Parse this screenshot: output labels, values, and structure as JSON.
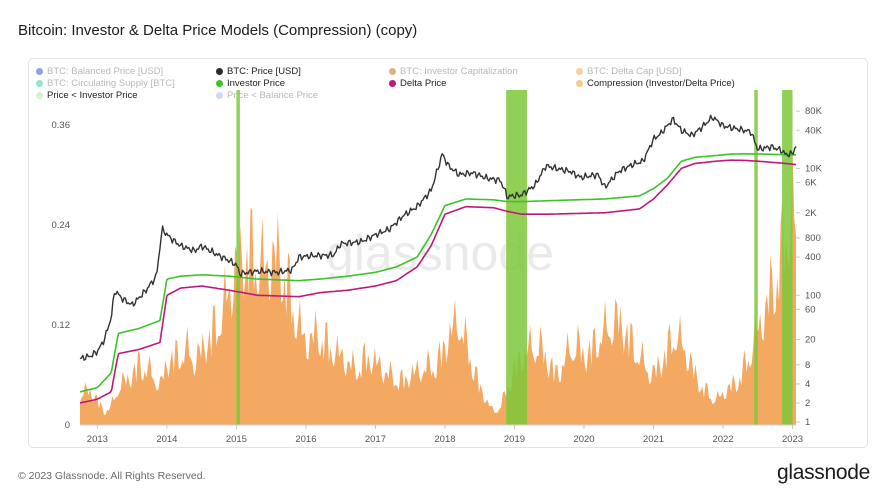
{
  "page": {
    "title": "Bitcoin: Investor & Delta Price Models (Compression) (copy)",
    "footer": "© 2023 Glassnode. All Rights Reserved.",
    "brand": "glassnode",
    "watermark": "glassnode"
  },
  "legend": [
    {
      "label": "BTC: Balanced Price [USD]",
      "color": "#3a4fd8",
      "active": false
    },
    {
      "label": "BTC: Price [USD]",
      "color": "#2b2b2b",
      "active": true
    },
    {
      "label": "BTC: Investor Capitalization",
      "color": "#b7791f",
      "active": false
    },
    {
      "label": "BTC: Delta Cap [USD]",
      "color": "#f0a860",
      "active": false
    },
    {
      "label": "BTC: Circulating Supply [BTC]",
      "color": "#34d399",
      "active": false
    },
    {
      "label": "Investor Price",
      "color": "#3cc32a",
      "active": true
    },
    {
      "label": "Delta Price",
      "color": "#c0187a",
      "active": true
    },
    {
      "label": "Compression (Investor/Delta Price)",
      "color": "#f6c992",
      "active": true
    },
    {
      "label": "Price < Investor Price",
      "color": "#d9f0c9",
      "active": true
    },
    {
      "label": "Price < Balance Price",
      "color": "#a9b4ef",
      "active": false
    }
  ],
  "colors": {
    "price": "#333333",
    "investor": "#3cc32a",
    "delta": "#c0187a",
    "compression": "#f29a46",
    "below_investor": "#7cc83a"
  },
  "chart_data": {
    "type": "area",
    "x_ticks": [
      "2013",
      "2014",
      "2015",
      "2016",
      "2017",
      "2018",
      "2019",
      "2020",
      "2021",
      "2022",
      "2023"
    ],
    "y_left": {
      "ticks": [
        "0",
        "0.12",
        "0.24",
        "0.36"
      ],
      "range": [
        0,
        0.39
      ]
    },
    "y_right": {
      "scale": "log",
      "ticks": [
        "1",
        "2",
        "4",
        "8",
        "20",
        "60",
        "100",
        "400",
        "800",
        "2K",
        "6K",
        "10K",
        "40K",
        "80K"
      ],
      "range": [
        0.9,
        120000
      ]
    },
    "series": [
      {
        "name": "Compression (Investor/Delta Price)",
        "axis": "left",
        "style": "area",
        "x": [
          2012.75,
          2012.9,
          2013.0,
          2013.1,
          2013.2,
          2013.3,
          2013.4,
          2013.5,
          2013.6,
          2013.7,
          2013.8,
          2013.9,
          2014.0,
          2014.1,
          2014.2,
          2014.3,
          2014.4,
          2014.5,
          2014.6,
          2014.7,
          2014.8,
          2014.9,
          2015.0,
          2015.1,
          2015.2,
          2015.3,
          2015.4,
          2015.5,
          2015.6,
          2015.7,
          2015.8,
          2015.9,
          2016.0,
          2016.1,
          2016.2,
          2016.3,
          2016.4,
          2016.5,
          2016.6,
          2016.7,
          2016.8,
          2016.9,
          2017.0,
          2017.1,
          2017.2,
          2017.3,
          2017.4,
          2017.5,
          2017.6,
          2017.7,
          2017.8,
          2017.9,
          2018.0,
          2018.1,
          2018.2,
          2018.3,
          2018.4,
          2018.5,
          2018.6,
          2018.7,
          2018.8,
          2018.9,
          2019.0,
          2019.1,
          2019.2,
          2019.3,
          2019.4,
          2019.5,
          2019.6,
          2019.7,
          2019.8,
          2019.9,
          2020.0,
          2020.1,
          2020.2,
          2020.3,
          2020.4,
          2020.5,
          2020.6,
          2020.7,
          2020.8,
          2020.9,
          2021.0,
          2021.1,
          2021.2,
          2021.3,
          2021.4,
          2021.5,
          2021.6,
          2021.7,
          2021.8,
          2021.9,
          2022.0,
          2022.1,
          2022.2,
          2022.3,
          2022.4,
          2022.5,
          2022.6,
          2022.7,
          2022.8,
          2022.9,
          2023.0,
          2023.05
        ],
        "y": [
          0.05,
          0.055,
          0.04,
          0.02,
          0.03,
          0.06,
          0.07,
          0.08,
          0.1,
          0.09,
          0.08,
          0.06,
          0.1,
          0.11,
          0.115,
          0.12,
          0.1,
          0.12,
          0.14,
          0.16,
          0.18,
          0.22,
          0.25,
          0.27,
          0.28,
          0.27,
          0.25,
          0.26,
          0.27,
          0.24,
          0.2,
          0.16,
          0.13,
          0.14,
          0.15,
          0.13,
          0.12,
          0.11,
          0.1,
          0.09,
          0.1,
          0.11,
          0.1,
          0.09,
          0.08,
          0.075,
          0.07,
          0.08,
          0.085,
          0.09,
          0.095,
          0.1,
          0.13,
          0.15,
          0.17,
          0.13,
          0.1,
          0.06,
          0.04,
          0.02,
          0.03,
          0.06,
          0.09,
          0.11,
          0.12,
          0.13,
          0.12,
          0.1,
          0.08,
          0.1,
          0.12,
          0.13,
          0.11,
          0.12,
          0.14,
          0.15,
          0.16,
          0.17,
          0.15,
          0.13,
          0.11,
          0.09,
          0.08,
          0.1,
          0.12,
          0.15,
          0.13,
          0.11,
          0.08,
          0.06,
          0.05,
          0.04,
          0.05,
          0.06,
          0.07,
          0.09,
          0.12,
          0.15,
          0.18,
          0.22,
          0.26,
          0.3,
          0.35,
          0.3
        ]
      },
      {
        "name": "BTC: Price [USD]",
        "axis": "right",
        "x": [
          2012.75,
          2012.9,
          2013.0,
          2013.1,
          2013.2,
          2013.25,
          2013.35,
          2013.5,
          2013.7,
          2013.85,
          2013.93,
          2014.05,
          2014.2,
          2014.4,
          2014.5,
          2014.7,
          2014.9,
          2015.0,
          2015.05,
          2015.3,
          2015.6,
          2015.8,
          2015.9,
          2016.1,
          2016.4,
          2016.5,
          2016.8,
          2017.0,
          2017.2,
          2017.4,
          2017.6,
          2017.8,
          2017.9,
          2017.96,
          2018.05,
          2018.2,
          2018.4,
          2018.6,
          2018.8,
          2018.9,
          2018.96,
          2019.1,
          2019.3,
          2019.45,
          2019.6,
          2019.8,
          2019.95,
          2020.2,
          2020.3,
          2020.5,
          2020.7,
          2020.85,
          2021.0,
          2021.1,
          2021.28,
          2021.4,
          2021.55,
          2021.7,
          2021.85,
          2022.0,
          2022.2,
          2022.4,
          2022.5,
          2022.7,
          2022.85,
          2022.9,
          2023.0,
          2023.05
        ],
        "y": [
          10,
          11,
          13,
          20,
          45,
          120,
          90,
          70,
          120,
          200,
          1100,
          800,
          600,
          500,
          600,
          450,
          350,
          300,
          220,
          240,
          230,
          250,
          400,
          420,
          430,
          650,
          700,
          900,
          1100,
          1800,
          2500,
          4500,
          10000,
          17000,
          11000,
          8000,
          8500,
          7000,
          6500,
          3500,
          3700,
          3800,
          5500,
          11000,
          10000,
          9000,
          7200,
          8000,
          5000,
          9000,
          11500,
          13000,
          29000,
          35000,
          60000,
          40000,
          33000,
          45000,
          65000,
          47000,
          42000,
          38000,
          20000,
          22000,
          19000,
          16500,
          17000,
          23000
        ]
      },
      {
        "name": "Investor Price",
        "axis": "right",
        "x": [
          2012.75,
          2013.0,
          2013.2,
          2013.3,
          2013.6,
          2013.9,
          2014.0,
          2014.2,
          2014.5,
          2014.9,
          2015.3,
          2015.9,
          2016.2,
          2016.6,
          2017.0,
          2017.3,
          2017.6,
          2017.8,
          2018.0,
          2018.3,
          2018.7,
          2018.9,
          2019.1,
          2019.5,
          2019.9,
          2020.3,
          2020.8,
          2021.0,
          2021.2,
          2021.4,
          2021.6,
          2021.9,
          2022.1,
          2022.3,
          2022.5,
          2022.7,
          2022.9,
          2023.05
        ],
        "y": [
          3,
          3.5,
          6,
          25,
          30,
          40,
          180,
          200,
          210,
          200,
          180,
          170,
          180,
          200,
          230,
          280,
          400,
          900,
          2600,
          3300,
          3200,
          3000,
          3000,
          3100,
          3200,
          3300,
          3700,
          4800,
          7000,
          13000,
          15000,
          16000,
          16800,
          17000,
          16900,
          16700,
          16500,
          16400
        ]
      },
      {
        "name": "Delta Price",
        "axis": "right",
        "x": [
          2012.75,
          2013.0,
          2013.2,
          2013.3,
          2013.6,
          2013.9,
          2014.0,
          2014.2,
          2014.5,
          2014.9,
          2015.3,
          2015.9,
          2016.2,
          2016.6,
          2017.0,
          2017.3,
          2017.6,
          2017.8,
          2018.0,
          2018.3,
          2018.7,
          2018.9,
          2019.1,
          2019.5,
          2019.9,
          2020.3,
          2020.8,
          2021.0,
          2021.2,
          2021.4,
          2021.6,
          2021.9,
          2022.1,
          2022.3,
          2022.5,
          2022.7,
          2022.9,
          2023.05
        ],
        "y": [
          2,
          2.3,
          3,
          12,
          14,
          18,
          100,
          130,
          140,
          120,
          100,
          95,
          110,
          120,
          140,
          170,
          280,
          600,
          1900,
          2500,
          2400,
          2100,
          1900,
          1900,
          1950,
          2000,
          2300,
          3300,
          5500,
          10000,
          12000,
          13000,
          13500,
          13400,
          13000,
          12500,
          12000,
          11500
        ]
      }
    ],
    "price_below_investor_periods": [
      [
        2015.0,
        2015.05
      ],
      [
        2018.88,
        2019.18
      ],
      [
        2022.45,
        2022.5
      ],
      [
        2022.85,
        2023.0
      ]
    ]
  }
}
